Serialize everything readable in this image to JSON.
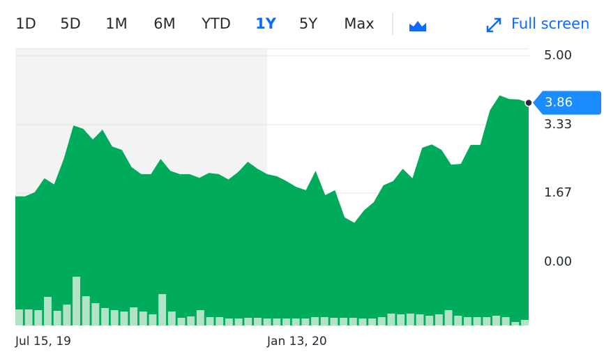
{
  "toolbar": {
    "ranges": [
      "1D",
      "5D",
      "1M",
      "6M",
      "YTD",
      "1Y",
      "5Y",
      "Max"
    ],
    "active_index": 5,
    "active_color": "#0f69ff",
    "fullscreen_label": "Full screen"
  },
  "chart_data": {
    "type": "area",
    "x": [
      "Jul 15, 19",
      null,
      null,
      null,
      null,
      null,
      null,
      null,
      null,
      null,
      null,
      null,
      null,
      null,
      null,
      null,
      null,
      null,
      null,
      null,
      null,
      null,
      null,
      null,
      null,
      null,
      "Jan 13, 20",
      null,
      null,
      null,
      null,
      null,
      null,
      null,
      null,
      null,
      null,
      null,
      null,
      null,
      null,
      null,
      null,
      null,
      null,
      null,
      null,
      null,
      null,
      null,
      null,
      null,
      null,
      null
    ],
    "series": [
      {
        "color": "#00ac5b",
        "values": [
          1.59,
          1.59,
          1.69,
          2.03,
          1.88,
          2.5,
          3.31,
          3.23,
          2.97,
          3.21,
          2.8,
          2.72,
          2.3,
          2.13,
          2.13,
          2.5,
          2.21,
          2.13,
          2.13,
          2.04,
          2.16,
          2.13,
          2.0,
          2.18,
          2.43,
          2.26,
          2.13,
          2.08,
          1.96,
          1.82,
          1.74,
          2.21,
          1.62,
          1.74,
          1.08,
          0.95,
          1.25,
          1.45,
          1.86,
          1.96,
          2.26,
          2.03,
          2.77,
          2.85,
          2.72,
          2.36,
          2.38,
          2.84,
          2.84,
          3.68,
          4.04,
          3.95,
          3.94,
          3.86
        ]
      }
    ],
    "volume": {
      "color": "#b3e3c6",
      "values": [
        23,
        23,
        22,
        41,
        21,
        30,
        70,
        42,
        32,
        25,
        22,
        20,
        26,
        20,
        16,
        45,
        20,
        11,
        13,
        22,
        12,
        12,
        10,
        10,
        11,
        11,
        10,
        10,
        10,
        10,
        10,
        12,
        12,
        11,
        11,
        11,
        10,
        10,
        12,
        17,
        16,
        17,
        16,
        14,
        16,
        22,
        14,
        12,
        12,
        12,
        14,
        12,
        5,
        8
      ],
      "ylim": [
        0,
        100
      ]
    },
    "ylim": [
      -1.54,
      5.17
    ],
    "yticks": [
      {
        "value": 5,
        "label": "5.00"
      },
      3.33,
      1.67,
      {
        "value": 0,
        "label": "0.00"
      }
    ],
    "grid": true,
    "shaded_until_index": 26,
    "price_tag_color": "#1a8cff"
  }
}
